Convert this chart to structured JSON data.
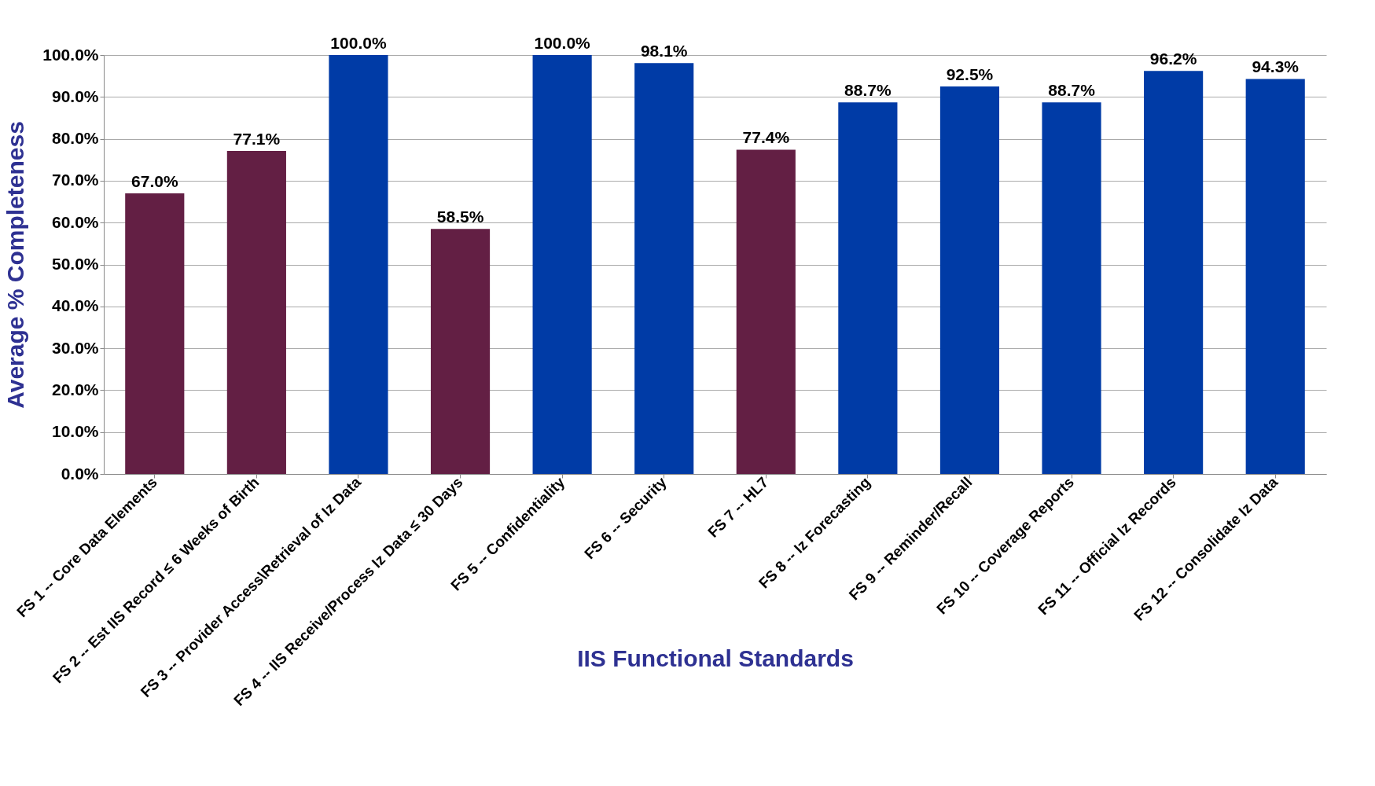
{
  "chart_data": {
    "type": "bar",
    "xlabel": "IIS Functional Standards",
    "ylabel": "Average % Completeness",
    "categories": [
      "FS 1 -- Core Data Elements",
      "FS 2 -- Est IIS Record ≤ 6 Weeks of Birth",
      "FS 3 -- Provider Access\\Retrieval of Iz Data",
      "FS 4 -- IIS Receive/Process Iz Data ≤ 30 Days",
      "FS 5 -- Confidentiality",
      "FS 6 -- Security",
      "FS 7 -- HL7",
      "FS 8 -- Iz Forecasting",
      "FS 9 -- Reminder/Recall",
      "FS 10 -- Coverage Reports",
      "FS 11 -- Official Iz Records",
      "FS 12 -- Consolidate Iz Data"
    ],
    "values": [
      67.0,
      77.1,
      100.0,
      58.5,
      100.0,
      98.1,
      77.4,
      88.7,
      92.5,
      88.7,
      96.2,
      94.3
    ],
    "colors": [
      "#631f44",
      "#631f44",
      "#003ba6",
      "#631f44",
      "#003ba6",
      "#003ba6",
      "#631f44",
      "#003ba6",
      "#003ba6",
      "#003ba6",
      "#003ba6",
      "#003ba6"
    ],
    "value_labels": [
      "67.0%",
      "77.1%",
      "100.0%",
      "58.5%",
      "100.0%",
      "98.1%",
      "77.4%",
      "88.7%",
      "92.5%",
      "88.7%",
      "96.2%",
      "94.3%"
    ],
    "ylim": [
      0,
      100
    ],
    "yticks": [
      {
        "value": 0,
        "label": "0.0%"
      },
      {
        "value": 10,
        "label": "10.0%"
      },
      {
        "value": 20,
        "label": "20.0%"
      },
      {
        "value": 30,
        "label": "30.0%"
      },
      {
        "value": 40,
        "label": "40.0%"
      },
      {
        "value": 50,
        "label": "50.0%"
      },
      {
        "value": 60,
        "label": "60.0%"
      },
      {
        "value": 70,
        "label": "70.0%"
      },
      {
        "value": 80,
        "label": "80.0%"
      },
      {
        "value": 90,
        "label": "90.0%"
      },
      {
        "value": 100,
        "label": "100.0%"
      }
    ],
    "grid": "y"
  }
}
